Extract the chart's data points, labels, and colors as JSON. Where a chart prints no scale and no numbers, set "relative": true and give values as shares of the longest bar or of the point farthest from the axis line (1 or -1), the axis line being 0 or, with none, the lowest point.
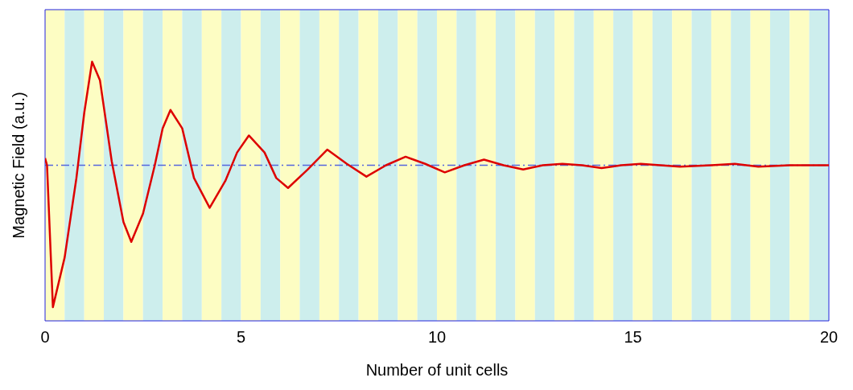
{
  "chart_data": {
    "type": "line",
    "xlabel": "Number of unit cells",
    "ylabel": "Magnetic Field (a.u.)",
    "relative": true,
    "x": [
      0,
      0.05,
      0.2,
      0.5,
      0.8,
      1.0,
      1.2,
      1.4,
      1.7,
      2.0,
      2.2,
      2.5,
      2.8,
      3.0,
      3.2,
      3.5,
      3.8,
      4.2,
      4.6,
      4.9,
      5.2,
      5.6,
      5.9,
      6.2,
      6.7,
      7.2,
      7.7,
      8.2,
      8.7,
      9.2,
      9.7,
      10.2,
      10.7,
      11.2,
      11.7,
      12.2,
      12.7,
      13.2,
      13.7,
      14.2,
      14.7,
      15.2,
      15.7,
      16.2,
      17,
      17.6,
      18.2,
      19,
      20
    ],
    "series": [
      {
        "color": "#dd0000",
        "values": [
          0.05,
          0,
          -1,
          -0.65,
          -0.09,
          0.37,
          0.73,
          0.6,
          0.03,
          -0.4,
          -0.54,
          -0.34,
          0,
          0.26,
          0.39,
          0.26,
          -0.09,
          -0.3,
          -0.11,
          0.09,
          0.21,
          0.09,
          -0.09,
          -0.16,
          -0.03,
          0.11,
          0.01,
          -0.08,
          0,
          0.06,
          0.01,
          -0.05,
          0,
          0.04,
          0,
          -0.03,
          0,
          0.01,
          0,
          -0.02,
          0,
          0.01,
          0,
          -0.01,
          0,
          0.01,
          -0.01,
          0,
          0
        ]
      }
    ],
    "xlim": [
      0,
      20
    ],
    "xticks": [
      0,
      5,
      10,
      15,
      20
    ],
    "grid": false,
    "legend": false,
    "marker": "none",
    "line_style": "solid",
    "ref_lines": [
      {
        "axis": "y",
        "value": 0,
        "color": "#5566dd",
        "line_style": "dashdot"
      }
    ],
    "bands": [
      {
        "axis": "x",
        "from": 0,
        "to": 0.5,
        "color": "#fdfdc3"
      },
      {
        "axis": "x",
        "from": 0.5,
        "to": 1,
        "color": "#cdeeed"
      },
      {
        "axis": "x",
        "from": 1,
        "to": 1.5,
        "color": "#fdfdc3"
      },
      {
        "axis": "x",
        "from": 1.5,
        "to": 2,
        "color": "#cdeeed"
      },
      {
        "axis": "x",
        "from": 2,
        "to": 2.5,
        "color": "#fdfdc3"
      },
      {
        "axis": "x",
        "from": 2.5,
        "to": 3,
        "color": "#cdeeed"
      },
      {
        "axis": "x",
        "from": 3,
        "to": 3.5,
        "color": "#fdfdc3"
      },
      {
        "axis": "x",
        "from": 3.5,
        "to": 4,
        "color": "#cdeeed"
      },
      {
        "axis": "x",
        "from": 4,
        "to": 4.5,
        "color": "#fdfdc3"
      },
      {
        "axis": "x",
        "from": 4.5,
        "to": 5,
        "color": "#cdeeed"
      },
      {
        "axis": "x",
        "from": 5,
        "to": 5.5,
        "color": "#fdfdc3"
      },
      {
        "axis": "x",
        "from": 5.5,
        "to": 6,
        "color": "#cdeeed"
      },
      {
        "axis": "x",
        "from": 6,
        "to": 6.5,
        "color": "#fdfdc3"
      },
      {
        "axis": "x",
        "from": 6.5,
        "to": 7,
        "color": "#cdeeed"
      },
      {
        "axis": "x",
        "from": 7,
        "to": 7.5,
        "color": "#fdfdc3"
      },
      {
        "axis": "x",
        "from": 7.5,
        "to": 8,
        "color": "#cdeeed"
      },
      {
        "axis": "x",
        "from": 8,
        "to": 8.5,
        "color": "#fdfdc3"
      },
      {
        "axis": "x",
        "from": 8.5,
        "to": 9,
        "color": "#cdeeed"
      },
      {
        "axis": "x",
        "from": 9,
        "to": 9.5,
        "color": "#fdfdc3"
      },
      {
        "axis": "x",
        "from": 9.5,
        "to": 10,
        "color": "#cdeeed"
      },
      {
        "axis": "x",
        "from": 10,
        "to": 10.5,
        "color": "#fdfdc3"
      },
      {
        "axis": "x",
        "from": 10.5,
        "to": 11,
        "color": "#cdeeed"
      },
      {
        "axis": "x",
        "from": 11,
        "to": 11.5,
        "color": "#fdfdc3"
      },
      {
        "axis": "x",
        "from": 11.5,
        "to": 12,
        "color": "#cdeeed"
      },
      {
        "axis": "x",
        "from": 12,
        "to": 12.5,
        "color": "#fdfdc3"
      },
      {
        "axis": "x",
        "from": 12.5,
        "to": 13,
        "color": "#cdeeed"
      },
      {
        "axis": "x",
        "from": 13,
        "to": 13.5,
        "color": "#fdfdc3"
      },
      {
        "axis": "x",
        "from": 13.5,
        "to": 14,
        "color": "#cdeeed"
      },
      {
        "axis": "x",
        "from": 14,
        "to": 14.5,
        "color": "#fdfdc3"
      },
      {
        "axis": "x",
        "from": 14.5,
        "to": 15,
        "color": "#cdeeed"
      },
      {
        "axis": "x",
        "from": 15,
        "to": 15.5,
        "color": "#fdfdc3"
      },
      {
        "axis": "x",
        "from": 15.5,
        "to": 16,
        "color": "#cdeeed"
      },
      {
        "axis": "x",
        "from": 16,
        "to": 16.5,
        "color": "#fdfdc3"
      },
      {
        "axis": "x",
        "from": 16.5,
        "to": 17,
        "color": "#cdeeed"
      },
      {
        "axis": "x",
        "from": 17,
        "to": 17.5,
        "color": "#fdfdc3"
      },
      {
        "axis": "x",
        "from": 17.5,
        "to": 18,
        "color": "#cdeeed"
      },
      {
        "axis": "x",
        "from": 18,
        "to": 18.5,
        "color": "#fdfdc3"
      },
      {
        "axis": "x",
        "from": 18.5,
        "to": 19,
        "color": "#cdeeed"
      },
      {
        "axis": "x",
        "from": 19,
        "to": 19.5,
        "color": "#fdfdc3"
      },
      {
        "axis": "x",
        "from": 19.5,
        "to": 20,
        "color": "#cdeeed"
      }
    ]
  }
}
